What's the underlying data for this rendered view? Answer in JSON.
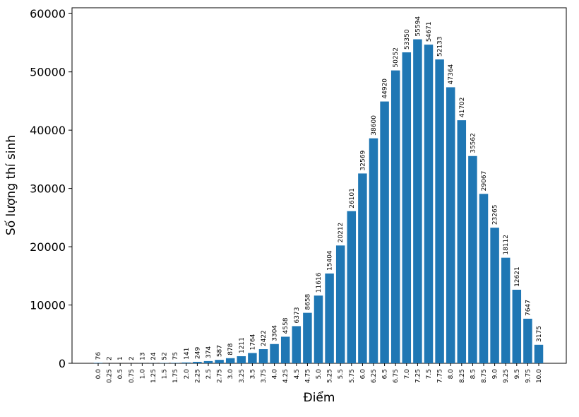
{
  "chart_data": {
    "type": "bar",
    "title": "",
    "xlabel": "Điểm",
    "ylabel": "Số lượng thí sinh",
    "ylim": [
      0,
      61000
    ],
    "yticks": [
      0,
      10000,
      20000,
      30000,
      40000,
      50000,
      60000
    ],
    "grid": false,
    "bar_color": "#1f77b4",
    "categories": [
      "0.0",
      "0.25",
      "0.5",
      "0.75",
      "1.0",
      "1.25",
      "1.5",
      "1.75",
      "2.0",
      "2.25",
      "2.5",
      "2.75",
      "3.0",
      "3.25",
      "3.5",
      "3.75",
      "4.0",
      "4.25",
      "4.5",
      "4.75",
      "5.0",
      "5.25",
      "5.5",
      "5.75",
      "6.0",
      "6.25",
      "6.5",
      "6.75",
      "7.0",
      "7.25",
      "7.5",
      "7.75",
      "8.0",
      "8.25",
      "8.5",
      "8.75",
      "9.0",
      "9.25",
      "9.5",
      "9.75",
      "10.0"
    ],
    "values": [
      76,
      2,
      1,
      2,
      13,
      24,
      52,
      75,
      141,
      249,
      374,
      587,
      878,
      1211,
      1764,
      2422,
      3304,
      4558,
      6373,
      8658,
      11616,
      15404,
      20212,
      26101,
      32569,
      38600,
      44920,
      50252,
      53350,
      55594,
      54671,
      52133,
      47364,
      41702,
      35562,
      29067,
      23265,
      18112,
      12621,
      7647,
      3175
    ]
  }
}
